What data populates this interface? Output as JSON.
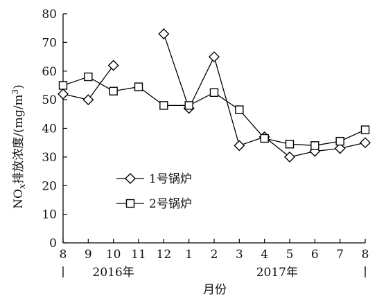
{
  "chart_data": {
    "type": "line",
    "xlabel": "月份",
    "ylabel_prefix": "NO",
    "ylabel_sub": "x",
    "ylabel_mid": "排放浓度/(mg/m",
    "ylabel_sup": "3",
    "ylabel_end": ")",
    "ylim": [
      0,
      80
    ],
    "yticks": [
      0,
      10,
      20,
      30,
      40,
      50,
      60,
      70,
      80
    ],
    "categories": [
      "8",
      "9",
      "10",
      "11",
      "12",
      "1",
      "2",
      "3",
      "4",
      "5",
      "6",
      "7",
      "8"
    ],
    "year_labels": [
      {
        "text": "2016年",
        "span": [
          0,
          4
        ]
      },
      {
        "text": "2017年",
        "span": [
          5,
          12
        ]
      }
    ],
    "series": [
      {
        "name": "1号锅炉",
        "marker": "diamond",
        "values": [
          52,
          50,
          62,
          null,
          73,
          47,
          65,
          34,
          37,
          30,
          32,
          33,
          35
        ]
      },
      {
        "name": "2号锅炉",
        "marker": "square",
        "values": [
          55,
          58,
          53,
          54.5,
          48,
          48,
          52.5,
          46.5,
          36.5,
          34.5,
          34,
          35.5,
          39.5
        ]
      }
    ],
    "legend_position": "center-left",
    "grid": false
  }
}
